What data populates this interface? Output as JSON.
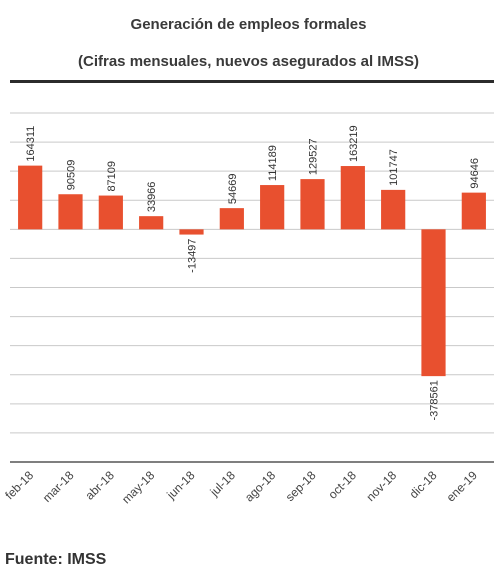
{
  "header": {
    "title": "Generación de empleos formales",
    "subtitle": "(Cifras mensuales, nuevos asegurados al IMSS)"
  },
  "source": "Fuente: IMSS",
  "chart_data": {
    "type": "bar",
    "categories": [
      "feb-18",
      "mar-18",
      "abr-18",
      "may-18",
      "jun-18",
      "jul-18",
      "ago-18",
      "sep-18",
      "oct-18",
      "nov-18",
      "dic-18",
      "ene-19"
    ],
    "values": [
      164311,
      90509,
      87109,
      33966,
      -13497,
      54669,
      114189,
      129527,
      163219,
      101747,
      -378561,
      94646
    ],
    "data_labels": [
      "164311",
      "90509",
      "87109",
      "33966",
      "-13497",
      "54669",
      "114189",
      "129527",
      "163219",
      "101747",
      "-378561",
      "94646"
    ],
    "ylim": [
      -600000,
      300000
    ],
    "grid": true,
    "legend": "none",
    "bar_color": "#e8502f",
    "grid_color": "#c9c9c9"
  }
}
